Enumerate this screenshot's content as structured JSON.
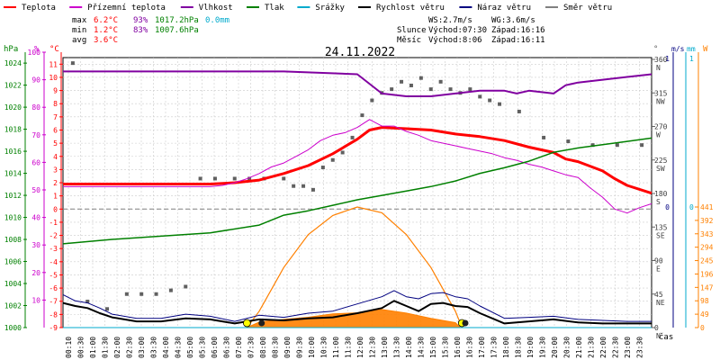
{
  "legend": [
    {
      "label": "Teplota",
      "color": "#ff0000"
    },
    {
      "label": "Přízemní teplota",
      "color": "#cc00cc"
    },
    {
      "label": "Vlhkost",
      "color": "#8000a0"
    },
    {
      "label": "Tlak",
      "color": "#008000"
    },
    {
      "label": "Srážky",
      "color": "#00aacc"
    },
    {
      "label": "Rychlost větru",
      "color": "#000000"
    },
    {
      "label": "Náraz větru",
      "color": "#000080"
    },
    {
      "label": "Směr větru",
      "color": "#808080"
    }
  ],
  "stats": {
    "max": {
      "label": "max",
      "temp": "6.2°C",
      "hum": "93%",
      "press": "1017.2hPa",
      "rain": "0.0mm"
    },
    "min": {
      "label": "min",
      "temp": "1.2°C",
      "hum": "83%",
      "press": "1007.6hPa"
    },
    "avg": {
      "label": "avg",
      "temp": "3.6°C"
    }
  },
  "wind_info": {
    "ws": "WS:2.7m/s",
    "wg": "WG:3.6m/s"
  },
  "sun": {
    "label": "Slunce",
    "rise": "Východ:07:30",
    "set": "Západ:16:16"
  },
  "moon": {
    "label": "Měsíc",
    "rise": "Východ:8:06",
    "set": "Západ:16:11"
  },
  "title": "24.11.2022",
  "axis_units": {
    "hpa": "hPa",
    "pct": "%",
    "degc": "°C",
    "deg": "°",
    "ms": "m/s",
    "mm": "mm",
    "w": "W",
    "cas": "čas"
  },
  "chart_data": {
    "type": "line",
    "title": "24.11.2022",
    "x_ticks": [
      "00:10",
      "00:30",
      "01:00",
      "01:30",
      "02:00",
      "02:30",
      "03:00",
      "03:30",
      "04:00",
      "04:30",
      "05:00",
      "05:30",
      "06:00",
      "06:30",
      "07:00",
      "07:30",
      "08:00",
      "08:30",
      "09:00",
      "09:30",
      "10:00",
      "10:30",
      "11:00",
      "11:30",
      "12:00",
      "12:30",
      "13:00",
      "13:30",
      "14:00",
      "14:30",
      "15:00",
      "15:30",
      "16:00",
      "16:30",
      "17:00",
      "17:30",
      "18:00",
      "18:30",
      "19:00",
      "19:30",
      "20:00",
      "20:30",
      "21:00",
      "21:30",
      "22:00",
      "22:30",
      "23:00",
      "23:30"
    ],
    "axes": {
      "pressure_hpa": {
        "ticks": [
          1000,
          1002,
          1004,
          1006,
          1008,
          1010,
          1012,
          1014,
          1016,
          1018,
          1020,
          1022,
          1024
        ]
      },
      "humidity_pct": {
        "ticks": [
          10,
          20,
          30,
          40,
          50,
          60,
          70,
          80,
          90,
          100
        ]
      },
      "temperature_c": {
        "ticks": [
          -9,
          -8,
          -7,
          -6,
          -5,
          -4,
          -3,
          -2,
          -1,
          0,
          1,
          2,
          3,
          4,
          5,
          6,
          7,
          8,
          9,
          10,
          11
        ],
        "ylim": [
          -9,
          11.5
        ]
      },
      "wind_dir_deg": {
        "ticks": [
          {
            "v": 0,
            "l": "N"
          },
          {
            "v": 45,
            "l": "NE"
          },
          {
            "v": 90,
            "l": "E"
          },
          {
            "v": 135,
            "l": "SE"
          },
          {
            "v": 180,
            "l": "S"
          },
          {
            "v": 225,
            "l": "SW"
          },
          {
            "v": 270,
            "l": "W"
          },
          {
            "v": 315,
            "l": "NW"
          },
          {
            "v": 360,
            "l": "N"
          }
        ]
      },
      "wind_ms": {
        "ticks": [
          {
            "v": 0,
            "l": "0"
          },
          {
            "v": 1,
            "l": "1"
          }
        ]
      },
      "rain_mm": {
        "ticks": [
          {
            "v": 0,
            "l": "0"
          },
          {
            "v": 1,
            "l": "1"
          }
        ]
      },
      "solar_w": {
        "ticks": [
          0,
          49,
          98,
          147,
          196,
          245,
          294,
          343,
          392,
          441
        ]
      }
    },
    "series": [
      {
        "name": "Teplota",
        "color": "#ff0000",
        "unit": "°C",
        "x": [
          0,
          6,
          7,
          8,
          9,
          10,
          11,
          12,
          12.5,
          13,
          14,
          15,
          16,
          17,
          18,
          19,
          20,
          20.5,
          21,
          22,
          22.5,
          23,
          24
        ],
        "y": [
          1.9,
          1.9,
          2.0,
          2.2,
          2.7,
          3.3,
          4.2,
          5.3,
          6.0,
          6.2,
          6.1,
          6.0,
          5.7,
          5.5,
          5.2,
          4.7,
          4.3,
          3.8,
          3.6,
          2.9,
          2.3,
          1.8,
          1.2
        ]
      },
      {
        "name": "Přízemní teplota",
        "color": "#cc00cc",
        "unit": "°C",
        "x": [
          0,
          6,
          6.5,
          7,
          7.5,
          8,
          8.5,
          9,
          9.5,
          10,
          10.5,
          11,
          11.5,
          12,
          12.5,
          13,
          13.5,
          14,
          14.5,
          15,
          15.5,
          16,
          16.5,
          17,
          17.5,
          18,
          18.5,
          19,
          19.5,
          20,
          20.5,
          21,
          21.5,
          22,
          22.5,
          23,
          23.5,
          24
        ],
        "y": [
          1.7,
          1.7,
          1.8,
          2.0,
          2.3,
          2.7,
          3.2,
          3.5,
          4.0,
          4.5,
          5.2,
          5.6,
          5.8,
          6.2,
          6.8,
          6.3,
          6.3,
          5.9,
          5.6,
          5.2,
          5.0,
          4.8,
          4.6,
          4.4,
          4.2,
          3.9,
          3.7,
          3.4,
          3.2,
          2.9,
          2.6,
          2.4,
          1.6,
          0.9,
          0.0,
          -0.3,
          0.1,
          0.4
        ]
      },
      {
        "name": "Vlhkost",
        "color": "#8000a0",
        "unit": "%",
        "x": [
          0,
          7,
          9,
          12,
          13,
          14,
          15,
          16,
          17,
          18,
          18.5,
          19,
          20,
          20.5,
          21,
          22,
          23,
          24
        ],
        "y": [
          93,
          93,
          93,
          92,
          85,
          84,
          84,
          85,
          86,
          86,
          85,
          86,
          85,
          88,
          89,
          90,
          91,
          92
        ]
      },
      {
        "name": "Tlak",
        "color": "#008000",
        "unit": "hPa",
        "x": [
          0,
          2,
          4,
          6,
          8,
          9,
          10,
          11,
          12,
          13,
          14,
          15,
          16,
          17,
          18,
          19,
          20,
          21,
          22,
          23,
          24
        ],
        "y": [
          1007.6,
          1008.0,
          1008.3,
          1008.6,
          1009.3,
          1010.2,
          1010.6,
          1011.1,
          1011.6,
          1012.0,
          1012.4,
          1012.8,
          1013.3,
          1014.0,
          1014.5,
          1015.1,
          1015.9,
          1016.3,
          1016.6,
          1016.9,
          1017.2
        ]
      },
      {
        "name": "Rychlost větru",
        "color": "#000000",
        "unit": "m/s",
        "x": [
          0,
          0.5,
          1,
          1.5,
          2,
          3,
          4,
          5,
          6,
          7,
          8,
          9,
          10,
          11,
          12,
          13,
          13.5,
          14,
          14.5,
          15,
          15.5,
          16,
          16.5,
          17,
          18,
          19,
          20,
          21,
          22,
          23,
          24
        ],
        "y": [
          2.4,
          2.1,
          1.9,
          1.4,
          1.0,
          0.6,
          0.6,
          0.9,
          0.8,
          0.4,
          0.8,
          0.7,
          0.9,
          1.0,
          1.4,
          1.9,
          2.6,
          2.1,
          1.6,
          2.3,
          2.4,
          2.1,
          2.0,
          1.4,
          0.4,
          0.6,
          0.8,
          0.5,
          0.4,
          0.4,
          0.4
        ]
      },
      {
        "name": "Náraz větru",
        "color": "#000080",
        "unit": "m/s",
        "x": [
          0,
          0.5,
          1,
          1.5,
          2,
          3,
          4,
          5,
          6,
          7,
          8,
          9,
          10,
          11,
          12,
          13,
          13.5,
          14,
          14.5,
          15,
          15.5,
          16,
          16.5,
          17,
          18,
          19,
          20,
          21,
          22,
          23,
          24
        ],
        "y": [
          3.2,
          2.6,
          2.4,
          1.9,
          1.3,
          0.9,
          0.9,
          1.3,
          1.1,
          0.6,
          1.2,
          1.0,
          1.4,
          1.6,
          2.3,
          3.0,
          3.6,
          3.0,
          2.8,
          3.3,
          3.4,
          3.0,
          2.8,
          2.1,
          0.9,
          1.0,
          1.1,
          0.8,
          0.7,
          0.6,
          0.6
        ]
      },
      {
        "name": "Srážky",
        "color": "#00aacc",
        "unit": "mm",
        "x": [
          0,
          24
        ],
        "y": [
          0,
          0
        ]
      }
    ],
    "solar_radiation": {
      "name": "Solar radiation",
      "unit": "W",
      "x": [
        7.5,
        8,
        9,
        10,
        11,
        12,
        13,
        14,
        15,
        16,
        16.2
      ],
      "y": [
        0,
        20,
        30,
        38,
        50,
        54,
        66,
        53,
        34,
        18,
        0
      ],
      "theoretical_x": [
        7.5,
        8,
        9,
        10,
        11,
        12,
        13,
        14,
        15,
        16,
        16.27
      ],
      "theoretical_y": [
        0,
        60,
        220,
        340,
        410,
        441,
        420,
        340,
        220,
        60,
        0
      ]
    },
    "wind_direction": {
      "name": "Směr větru",
      "unit": "°",
      "x": [
        0.4,
        1.0,
        1.8,
        2.6,
        3.2,
        3.8,
        4.4,
        5.0,
        5.6,
        6.2,
        7.0,
        7.6,
        8.2,
        9.0,
        9.4,
        9.8,
        10.2,
        10.6,
        11.0,
        11.4,
        11.8,
        12.2,
        12.6,
        13.0,
        13.4,
        13.8,
        14.2,
        14.6,
        15.0,
        15.4,
        15.8,
        16.2,
        16.6,
        17.0,
        17.4,
        17.8,
        18.6,
        19.6,
        20.6,
        21.6,
        22.6,
        23.6
      ],
      "y": [
        355,
        35,
        25,
        45,
        45,
        45,
        50,
        55,
        200,
        200,
        200,
        200,
        200,
        200,
        190,
        190,
        185,
        215,
        225,
        235,
        255,
        285,
        305,
        315,
        320,
        330,
        325,
        335,
        320,
        330,
        320,
        315,
        320,
        310,
        305,
        300,
        290,
        255,
        250,
        245,
        245,
        245
      ]
    },
    "markers": {
      "sunrise": "07:30",
      "sunset": "16:16",
      "moonrise": "8:06",
      "moonset": "16:11"
    }
  }
}
